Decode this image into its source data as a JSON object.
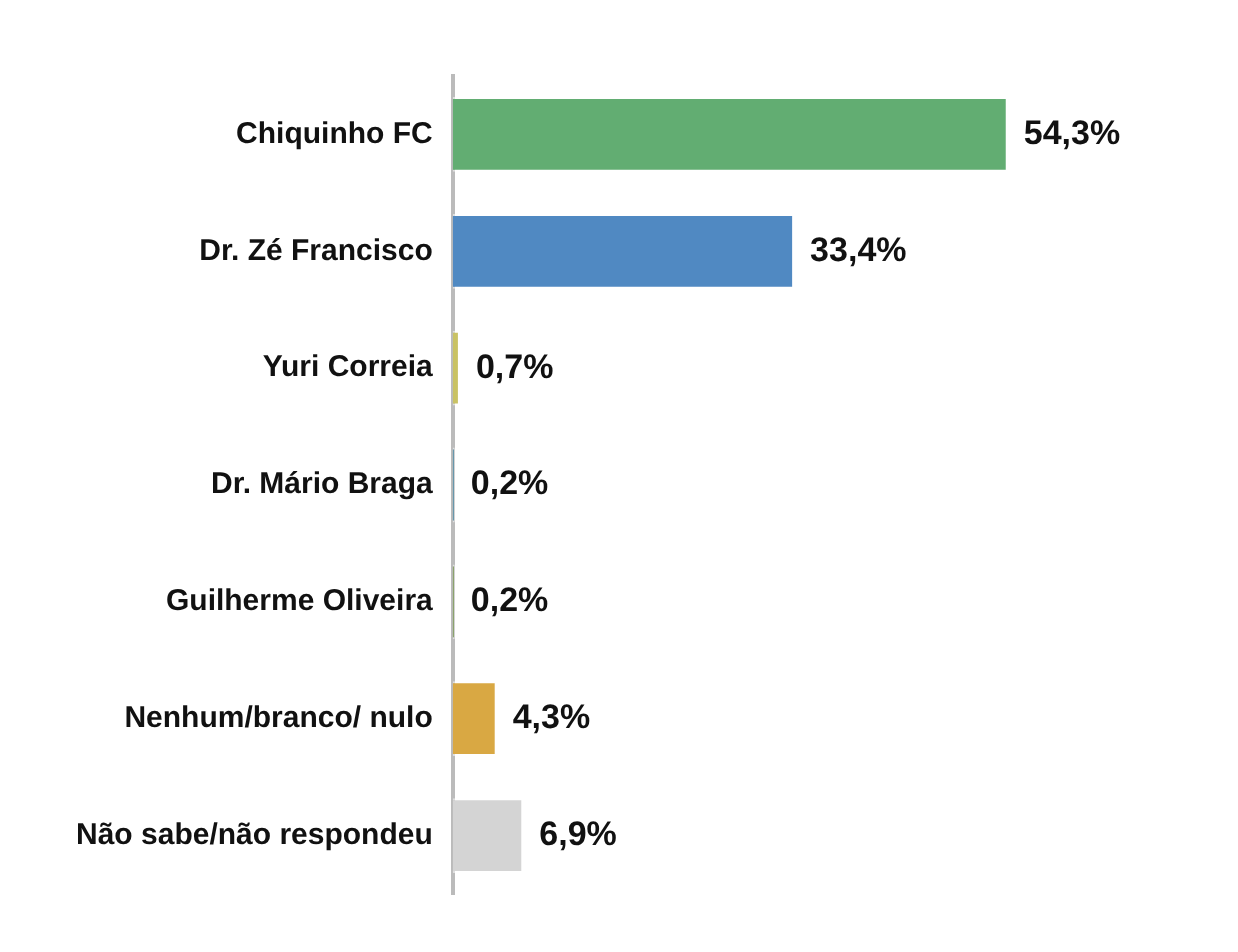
{
  "chart_data": {
    "type": "bar",
    "orientation": "horizontal",
    "categories": [
      "Chiquinho FC",
      "Dr. Zé Francisco",
      "Yuri Correia",
      "Dr. Mário Braga",
      "Guilherme Oliveira",
      "Nenhum/branco/ nulo",
      "Não sabe/não respondeu"
    ],
    "values": [
      54.3,
      33.4,
      0.7,
      0.2,
      0.2,
      4.3,
      6.9
    ],
    "colors": [
      "#62ad72",
      "#5089c2",
      "#c9c264",
      "#4b8aa6",
      "#7b9a52",
      "#d9a843",
      "#d4d4d4"
    ],
    "value_labels": [
      "54,3%",
      "33,4%",
      "0,7%",
      "0,2%",
      "0,2%",
      "4,3%",
      "6,9%"
    ],
    "grid": false,
    "legend": false
  }
}
